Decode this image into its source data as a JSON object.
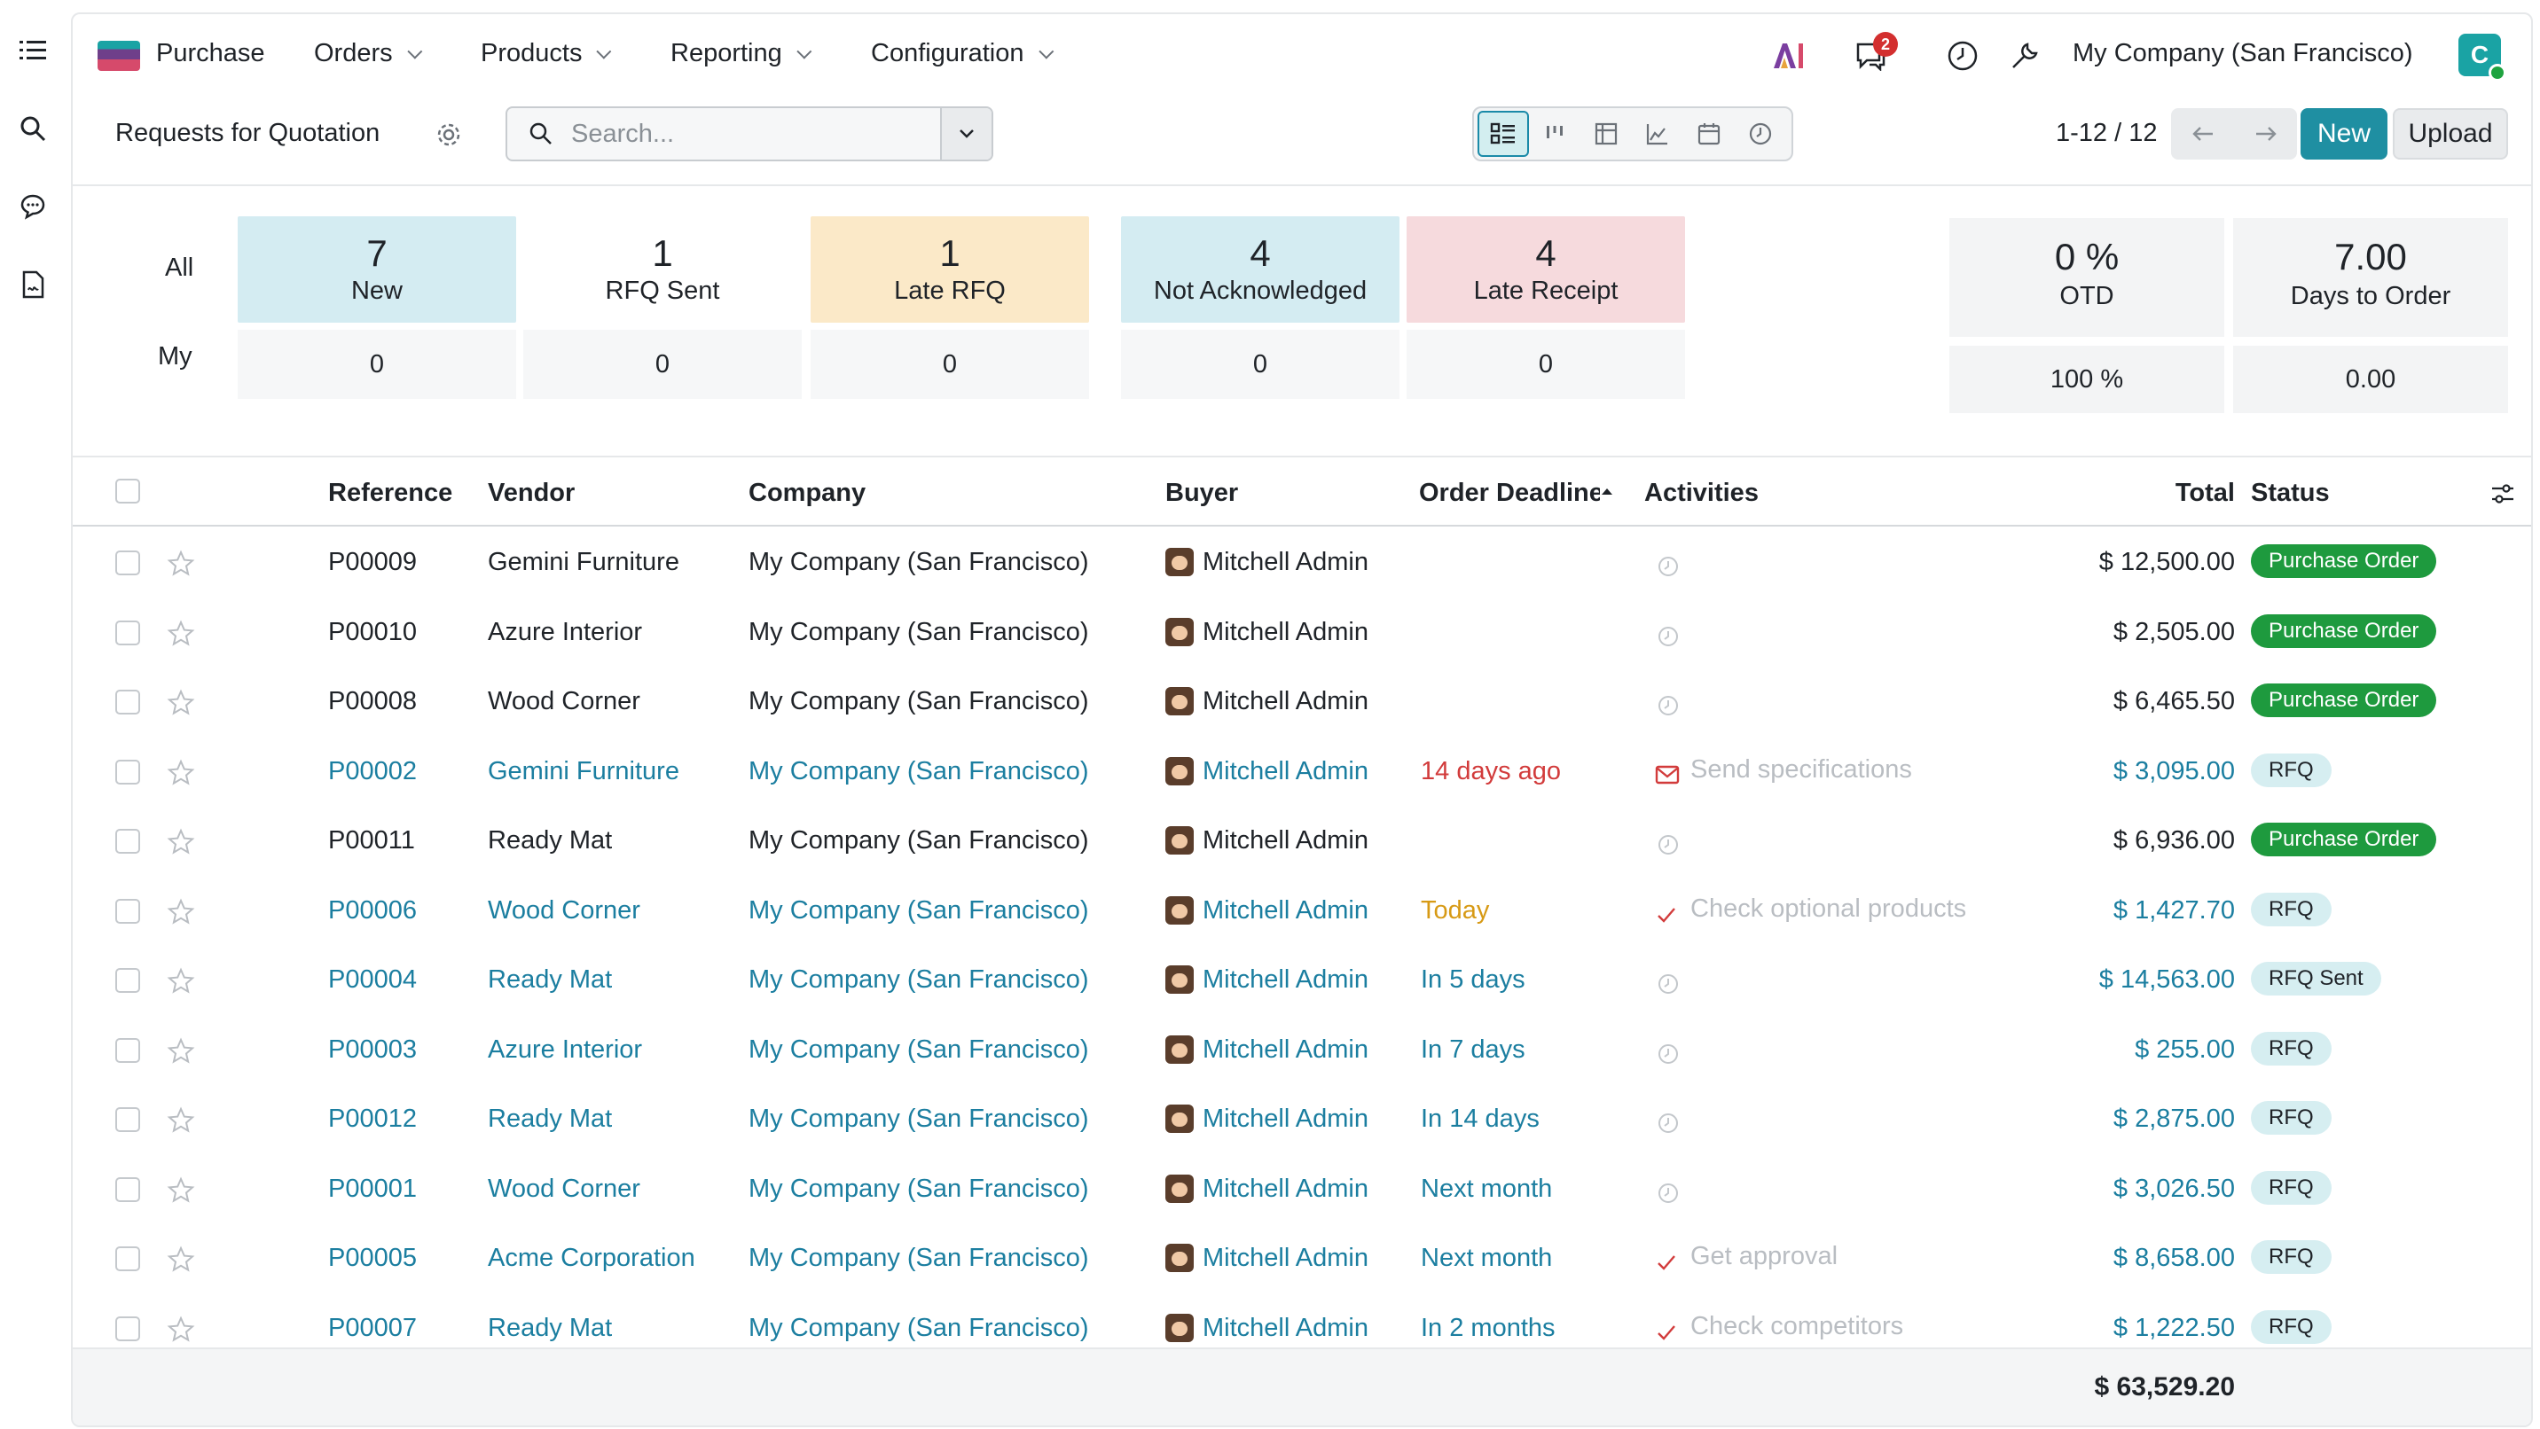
{
  "nav": {
    "app_name": "Purchase",
    "menus": [
      "Orders",
      "Products",
      "Reporting",
      "Configuration"
    ],
    "messages_badge": "2",
    "company": "My Company (San Francisco)",
    "avatar_letter": "C"
  },
  "control": {
    "title": "Requests for Quotation",
    "search_placeholder": "Search...",
    "pager": "1-12 / 12",
    "new_label": "New",
    "upload_label": "Upload"
  },
  "dashboard": {
    "row_all": "All",
    "row_my": "My",
    "tiles": [
      {
        "num": "7",
        "label": "New",
        "color": "#d4ecf2",
        "my": "0"
      },
      {
        "num": "1",
        "label": "RFQ Sent",
        "color": "#ffffff",
        "my": "0"
      },
      {
        "num": "1",
        "label": "Late RFQ",
        "color": "#fbe9c8",
        "my": "0"
      },
      {
        "num": "4",
        "label": "Not Acknowledged",
        "color": "#d4ecf2",
        "my": "0"
      },
      {
        "num": "4",
        "label": "Late Receipt",
        "color": "#f6dadd",
        "my": "0"
      }
    ],
    "kpis": [
      {
        "num": "0 %",
        "label": "OTD",
        "sub": "100 %"
      },
      {
        "num": "7.00",
        "label": "Days to Order",
        "sub": "0.00"
      }
    ]
  },
  "table": {
    "headers": {
      "reference": "Reference",
      "vendor": "Vendor",
      "company": "Company",
      "buyer": "Buyer",
      "deadline": "Order Deadline",
      "activities": "Activities",
      "total": "Total",
      "status": "Status"
    },
    "rows": [
      {
        "ref": "P00009",
        "vendor": "Gemini Furniture",
        "company": "My Company (San Francisco)",
        "buyer": "Mitchell Admin",
        "deadline": "",
        "deadline_kind": "",
        "activity": "",
        "activity_icon": "clock-icon",
        "total": "$ 12,500.00",
        "status": "Purchase Order",
        "status_kind": "po",
        "blue": false
      },
      {
        "ref": "P00010",
        "vendor": "Azure Interior",
        "company": "My Company (San Francisco)",
        "buyer": "Mitchell Admin",
        "deadline": "",
        "deadline_kind": "",
        "activity": "",
        "activity_icon": "clock-icon",
        "total": "$ 2,505.00",
        "status": "Purchase Order",
        "status_kind": "po",
        "blue": false
      },
      {
        "ref": "P00008",
        "vendor": "Wood Corner",
        "company": "My Company (San Francisco)",
        "buyer": "Mitchell Admin",
        "deadline": "",
        "deadline_kind": "",
        "activity": "",
        "activity_icon": "clock-icon",
        "total": "$ 6,465.50",
        "status": "Purchase Order",
        "status_kind": "po",
        "blue": false
      },
      {
        "ref": "P00002",
        "vendor": "Gemini Furniture",
        "company": "My Company (San Francisco)",
        "buyer": "Mitchell Admin",
        "deadline": "14 days ago",
        "deadline_kind": "late",
        "activity": "Send specifications",
        "activity_icon": "envelope-icon",
        "total": "$ 3,095.00",
        "status": "RFQ",
        "status_kind": "rfq",
        "blue": true
      },
      {
        "ref": "P00011",
        "vendor": "Ready Mat",
        "company": "My Company (San Francisco)",
        "buyer": "Mitchell Admin",
        "deadline": "",
        "deadline_kind": "",
        "activity": "",
        "activity_icon": "clock-icon",
        "total": "$ 6,936.00",
        "status": "Purchase Order",
        "status_kind": "po",
        "blue": false
      },
      {
        "ref": "P00006",
        "vendor": "Wood Corner",
        "company": "My Company (San Francisco)",
        "buyer": "Mitchell Admin",
        "deadline": "Today",
        "deadline_kind": "today",
        "activity": "Check optional products",
        "activity_icon": "check-icon",
        "total": "$ 1,427.70",
        "status": "RFQ",
        "status_kind": "rfq",
        "blue": true
      },
      {
        "ref": "P00004",
        "vendor": "Ready Mat",
        "company": "My Company (San Francisco)",
        "buyer": "Mitchell Admin",
        "deadline": "In 5 days",
        "deadline_kind": "",
        "activity": "",
        "activity_icon": "clock-icon",
        "total": "$ 14,563.00",
        "status": "RFQ Sent",
        "status_kind": "rfq",
        "blue": true
      },
      {
        "ref": "P00003",
        "vendor": "Azure Interior",
        "company": "My Company (San Francisco)",
        "buyer": "Mitchell Admin",
        "deadline": "In 7 days",
        "deadline_kind": "",
        "activity": "",
        "activity_icon": "clock-icon",
        "total": "$ 255.00",
        "status": "RFQ",
        "status_kind": "rfq",
        "blue": true
      },
      {
        "ref": "P00012",
        "vendor": "Ready Mat",
        "company": "My Company (San Francisco)",
        "buyer": "Mitchell Admin",
        "deadline": "In 14 days",
        "deadline_kind": "",
        "activity": "",
        "activity_icon": "clock-icon",
        "total": "$ 2,875.00",
        "status": "RFQ",
        "status_kind": "rfq",
        "blue": true
      },
      {
        "ref": "P00001",
        "vendor": "Wood Corner",
        "company": "My Company (San Francisco)",
        "buyer": "Mitchell Admin",
        "deadline": "Next month",
        "deadline_kind": "",
        "activity": "",
        "activity_icon": "clock-icon",
        "total": "$ 3,026.50",
        "status": "RFQ",
        "status_kind": "rfq",
        "blue": true
      },
      {
        "ref": "P00005",
        "vendor": "Acme Corporation",
        "company": "My Company (San Francisco)",
        "buyer": "Mitchell Admin",
        "deadline": "Next month",
        "deadline_kind": "",
        "activity": "Get approval",
        "activity_icon": "check-icon",
        "total": "$ 8,658.00",
        "status": "RFQ",
        "status_kind": "rfq",
        "blue": true
      },
      {
        "ref": "P00007",
        "vendor": "Ready Mat",
        "company": "My Company (San Francisco)",
        "buyer": "Mitchell Admin",
        "deadline": "In 2 months",
        "deadline_kind": "",
        "activity": "Check competitors",
        "activity_icon": "check-icon",
        "total": "$ 1,222.50",
        "status": "RFQ",
        "status_kind": "rfq",
        "blue": true
      }
    ],
    "grand_total": "$ 63,529.20"
  }
}
